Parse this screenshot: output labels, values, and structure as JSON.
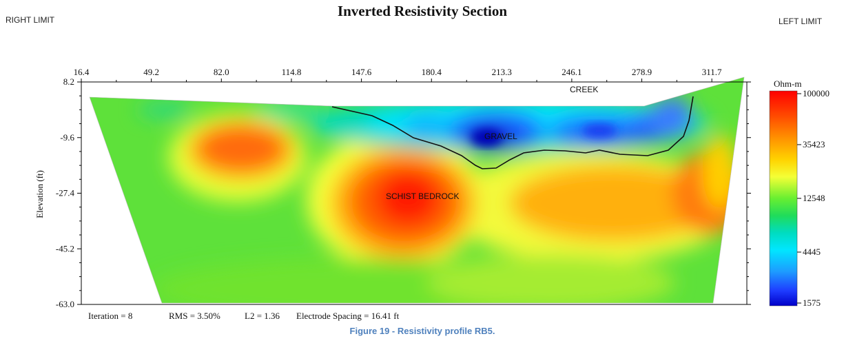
{
  "header": {
    "title": "Inverted Resistivity Section",
    "right_limit": "RIGHT LIMIT",
    "left_limit": "LEFT LIMIT"
  },
  "chart_data": {
    "type": "heatmap",
    "title": "Inverted Resistivity Section",
    "ylabel": "Elevation (ft)",
    "xlabel": "",
    "x_ticks": [
      "16.4",
      "49.2",
      "82.0",
      "114.8",
      "147.6",
      "180.4",
      "213.3",
      "246.1",
      "278.9",
      "311.7"
    ],
    "x_tick_values": [
      16.4,
      49.2,
      82.0,
      114.8,
      147.6,
      180.4,
      213.3,
      246.1,
      278.9,
      311.7
    ],
    "xlim": [
      16.4,
      328.1
    ],
    "y_ticks": [
      "8.2",
      "-9.6",
      "-27.4",
      "-45.2",
      "-63.0"
    ],
    "y_tick_values": [
      8.2,
      -9.6,
      -27.4,
      -45.2,
      -63.0
    ],
    "ylim": [
      -63.0,
      8.2
    ],
    "colorbar": {
      "title": "Ohm-m",
      "ticks": [
        "100000",
        "35423",
        "12548",
        "4445",
        "1575"
      ],
      "tick_values": [
        100000,
        35423,
        12548,
        4445,
        1575
      ],
      "scale": "log",
      "colors": [
        "#ff0000",
        "#ff8a00",
        "#ffd400",
        "#f2ff40",
        "#39e629",
        "#00d7b4",
        "#00e8ff",
        "#1ea4ff",
        "#1f4bff",
        "#0000c8"
      ]
    },
    "annotations": [
      "CREEK",
      "GRAVEL",
      "SCHIST BEDROCK"
    ],
    "footer": {
      "iteration": "Iteration = 8",
      "rms": "RMS = 3.50%",
      "l2": "L2 = 1.36",
      "spacing": "Electrode Spacing = 16.41 ft"
    }
  },
  "caption": "Figure 19 - Resistivity profile RB5.",
  "colors": {
    "caption": "#4f81bd",
    "frame": "#000000"
  }
}
